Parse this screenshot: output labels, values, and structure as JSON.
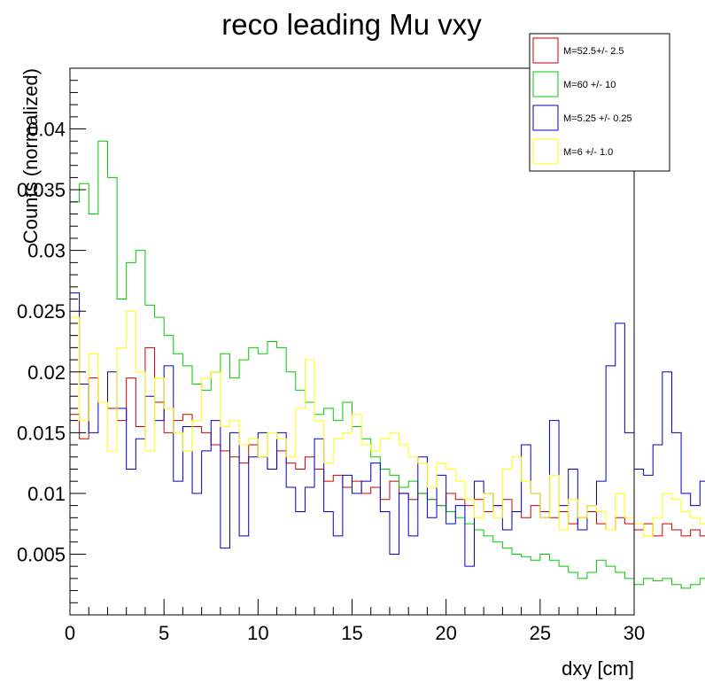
{
  "chart_data": {
    "type": "histogram",
    "title": "reco leading Mu vxy",
    "xlabel": "dxy [cm]",
    "ylabel": "Counts (normalized)",
    "xlim": [
      0,
      30
    ],
    "ylim": [
      0,
      0.045
    ],
    "bin_width": 0.5,
    "x_ticks": [
      0,
      5,
      10,
      15,
      20,
      25,
      30
    ],
    "x_tick_labels": [
      "0",
      "5",
      "10",
      "15",
      "20",
      "25",
      "30"
    ],
    "y_ticks": [
      0.005,
      0.01,
      0.015,
      0.02,
      0.025,
      0.03,
      0.035,
      0.04
    ],
    "y_tick_labels": [
      "0.005",
      "0.01",
      "0.015",
      "0.02",
      "0.025",
      "0.03",
      "0.035",
      "0.04"
    ],
    "legend_position": "top-right",
    "series": [
      {
        "name": "M=52.5+/- 2.5",
        "color": "#cc0000",
        "values": [
          0.0165,
          0.0145,
          0.0195,
          0.0175,
          0.017,
          0.016,
          0.0195,
          0.0155,
          0.022,
          0.0175,
          0.015,
          0.016,
          0.0165,
          0.0155,
          0.015,
          0.014,
          0.0135,
          0.013,
          0.0125,
          0.014,
          0.013,
          0.012,
          0.0135,
          0.0125,
          0.012,
          0.013,
          0.012,
          0.011,
          0.0115,
          0.0105,
          0.011,
          0.01,
          0.0105,
          0.0095,
          0.011,
          0.01,
          0.0095,
          0.01,
          0.0095,
          0.009,
          0.01,
          0.0095,
          0.009,
          0.0095,
          0.0085,
          0.009,
          0.0095,
          0.0085,
          0.008,
          0.009,
          0.0085,
          0.008,
          0.0085,
          0.0075,
          0.008,
          0.0085,
          0.0075,
          0.007,
          0.008,
          0.0075,
          0.007,
          0.0075,
          0.0065,
          0.0075,
          0.007,
          0.0065,
          0.007,
          0.0065,
          0.006,
          0.007,
          0.0065,
          0.006,
          0.0065,
          0.006,
          0.007,
          0.006,
          0.0055,
          0.0065,
          0.006,
          0.0055,
          0.006,
          0.0055,
          0.005,
          0.006,
          0.0055,
          0.005,
          0.0055,
          0.005,
          0.0045,
          0.0055,
          0.005,
          0.0045,
          0.005,
          0.0045,
          0.004,
          0.005,
          0.0045,
          0.004,
          0.0045,
          0.0035,
          0.004,
          0.0035,
          0.004,
          0.0035,
          0.003,
          0.0035,
          0.004,
          0.0035,
          0.003,
          0.0035,
          0.003,
          0.0025,
          0.003,
          0.0025,
          0.003,
          0.0025,
          0.002,
          0.0025,
          0.002,
          0.0025
        ]
      },
      {
        "name": "M=60 +/- 10",
        "color": "#00cc00",
        "values": [
          0.034,
          0.0355,
          0.033,
          0.039,
          0.036,
          0.026,
          0.029,
          0.03,
          0.0255,
          0.0245,
          0.023,
          0.0215,
          0.0205,
          0.019,
          0.0185,
          0.02,
          0.0215,
          0.0195,
          0.021,
          0.022,
          0.0215,
          0.0225,
          0.022,
          0.02,
          0.0185,
          0.0175,
          0.0165,
          0.017,
          0.016,
          0.0175,
          0.0155,
          0.0145,
          0.013,
          0.012,
          0.0115,
          0.0105,
          0.011,
          0.01,
          0.0095,
          0.009,
          0.0085,
          0.008,
          0.0075,
          0.007,
          0.0065,
          0.006,
          0.0055,
          0.005,
          0.0048,
          0.0045,
          0.005,
          0.0045,
          0.004,
          0.0035,
          0.003,
          0.0035,
          0.0045,
          0.004,
          0.0035,
          0.003,
          0.0025,
          0.003,
          0.0028,
          0.003,
          0.0025,
          0.0022,
          0.0025,
          0.003,
          0.0028,
          0.003,
          0.0025,
          0.003,
          0.0035,
          0.003,
          0.0025,
          0.003,
          0.004,
          0.0035,
          0.003,
          0.0028,
          0.0025,
          0.002,
          0.0025,
          0.002,
          0.0018,
          0.002,
          0.0015,
          0.002,
          0.0025,
          0.002,
          0.0018,
          0.002,
          0.0025,
          0.0028,
          0.003,
          0.0025,
          0.0028,
          0.0025,
          0.002,
          0.0025,
          0.003,
          0.0028,
          0.0025,
          0.002,
          0.0025,
          0.002,
          0.0015,
          0.002,
          0.0025,
          0.002,
          0.0015,
          0.002,
          0.0025,
          0.002,
          0.0015,
          0.002,
          0.0015,
          0.001,
          0.0015,
          0.001
        ]
      },
      {
        "name": "M=5.25 +/- 0.25",
        "color": "#0000cc",
        "values": [
          0.0265,
          0.019,
          0.015,
          0.0175,
          0.02,
          0.017,
          0.012,
          0.0145,
          0.018,
          0.016,
          0.0205,
          0.011,
          0.0155,
          0.01,
          0.0135,
          0.016,
          0.0055,
          0.015,
          0.0065,
          0.013,
          0.015,
          0.012,
          0.015,
          0.0105,
          0.0085,
          0.0105,
          0.0145,
          0.0085,
          0.0065,
          0.0115,
          0.01,
          0.011,
          0.0125,
          0.0085,
          0.005,
          0.01,
          0.0065,
          0.013,
          0.008,
          0.0115,
          0.0075,
          0.009,
          0.004,
          0.011,
          0.01,
          0.009,
          0.007,
          0.0085,
          0.014,
          0.01,
          0.008,
          0.016,
          0.009,
          0.012,
          0.007,
          0.009,
          0.011,
          0.0205,
          0.024,
          0.015,
          0.012,
          0.0115,
          0.014,
          0.02,
          0.015,
          0.01,
          0.009,
          0.011,
          0.008,
          0.011,
          0.009,
          0.012,
          0.0085,
          0.01,
          0.0125,
          0.0145,
          0.012,
          0.009,
          0.0085,
          0.0075,
          0.0085,
          0.006,
          0.0075,
          0.007,
          0.008,
          0.006,
          0.008,
          0.009,
          0.0075,
          0.0065,
          0.0085,
          0.0065,
          0.006,
          0.006,
          0.008,
          0.0065,
          0.0075,
          0.007,
          0.006,
          0.0055,
          0.007,
          0.006,
          0.0075,
          0.006,
          0.0055,
          0.005,
          0.008,
          0.006,
          0.003,
          0.0005,
          0.005,
          0.0055,
          0.0005,
          0.004,
          0.003,
          0.0005,
          0.0025,
          0.0045,
          0.0015,
          0.002
        ]
      },
      {
        "name": "M=6 +/- 1.0",
        "color": "#ffff00",
        "values": [
          0.0245,
          0.016,
          0.0215,
          0.0175,
          0.0135,
          0.022,
          0.025,
          0.02,
          0.0135,
          0.0195,
          0.017,
          0.015,
          0.0135,
          0.016,
          0.0195,
          0.02,
          0.0155,
          0.016,
          0.014,
          0.0145,
          0.013,
          0.015,
          0.0145,
          0.013,
          0.017,
          0.021,
          0.016,
          0.0125,
          0.0145,
          0.015,
          0.0165,
          0.014,
          0.0135,
          0.0145,
          0.015,
          0.014,
          0.013,
          0.0125,
          0.0105,
          0.0125,
          0.012,
          0.011,
          0.0095,
          0.008,
          0.01,
          0.008,
          0.012,
          0.013,
          0.011,
          0.01,
          0.008,
          0.0115,
          0.007,
          0.0095,
          0.008,
          0.009,
          0.0085,
          0.007,
          0.01,
          0.008,
          0.0075,
          0.0065,
          0.008,
          0.01,
          0.0095,
          0.0085,
          0.008,
          0.0075,
          0.009,
          0.0085,
          0.008,
          0.007,
          0.0085,
          0.009,
          0.0075,
          0.007,
          0.0085,
          0.006,
          0.0085,
          0.0095,
          0.008,
          0.006,
          0.007,
          0.0075,
          0.0065,
          0.006,
          0.0065,
          0.005,
          0.007,
          0.0065,
          0.0055,
          0.006,
          0.005,
          0.006,
          0.007,
          0.0065,
          0.008,
          0.009,
          0.0075,
          0.0095,
          0.01,
          0.007,
          0.0065,
          0.0055,
          0.005,
          0.004,
          0.0055,
          0.006,
          0.005,
          0.0045,
          0.0055,
          0.0045,
          0.005,
          0.004,
          0.0045,
          0.005,
          0.004,
          0.0035,
          0.003,
          0.0025
        ]
      }
    ]
  }
}
